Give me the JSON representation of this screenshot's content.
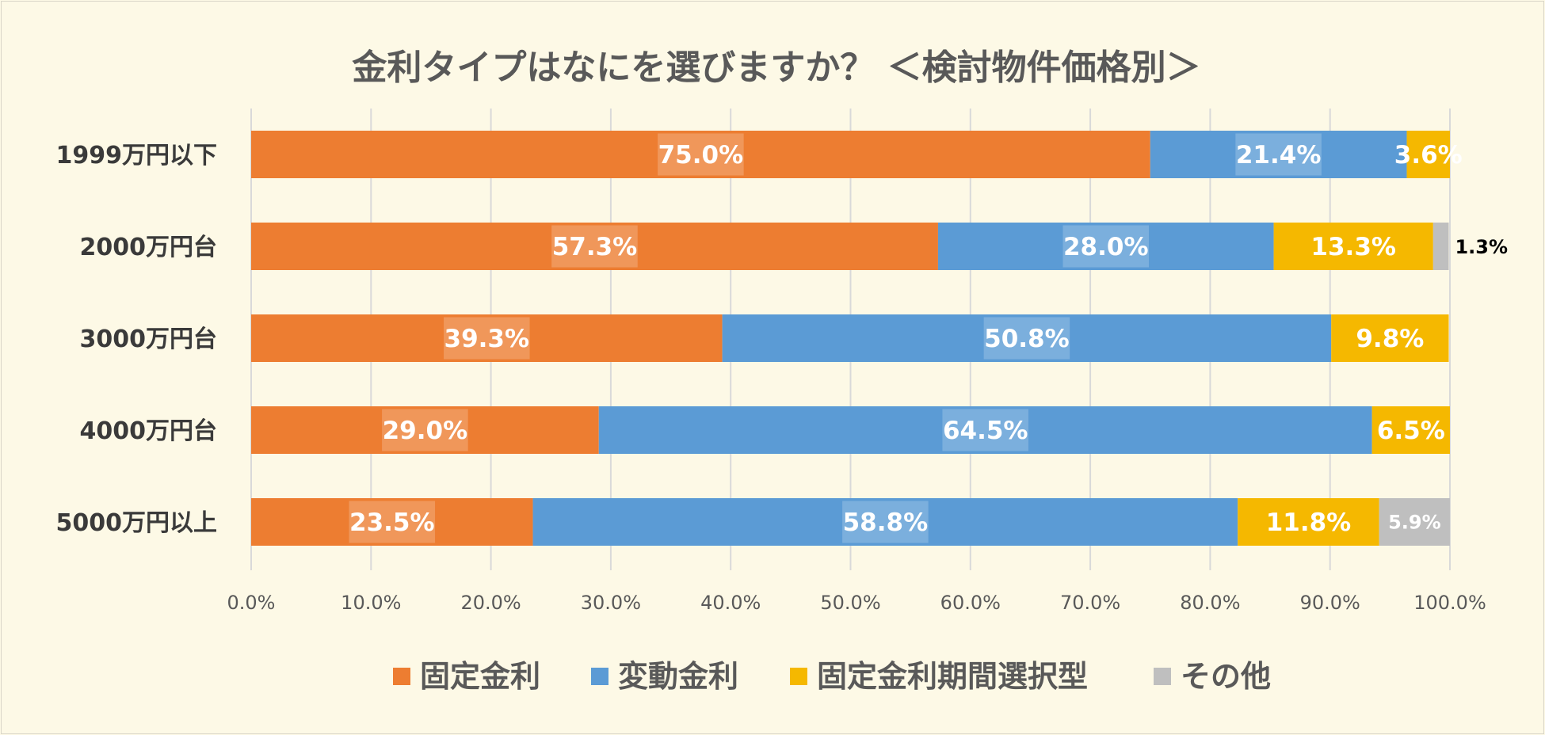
{
  "chart_data": {
    "type": "bar",
    "orientation": "horizontal",
    "stacked": true,
    "title": "金利タイプはなにを選びますか？ ＜検討物件価格別＞",
    "categories": [
      "1999万円以下",
      "2000万円台",
      "3000万円台",
      "4000万円台",
      "5000万円以上"
    ],
    "series": [
      {
        "name": "固定金利",
        "color": "#ed7d31",
        "values": [
          75.0,
          57.3,
          39.3,
          29.0,
          23.5
        ],
        "labels": [
          "75.0%",
          "57.3%",
          "39.3%",
          "29.0%",
          "23.5%"
        ]
      },
      {
        "name": "変動金利",
        "color": "#5b9bd5",
        "values": [
          21.4,
          28.0,
          50.8,
          64.5,
          58.8
        ],
        "labels": [
          "21.4%",
          "28.0%",
          "50.8%",
          "64.5%",
          "58.8%"
        ]
      },
      {
        "name": "固定金利期間選択型",
        "color": "#f5b800",
        "values": [
          3.6,
          13.3,
          9.8,
          6.5,
          11.8
        ],
        "labels": [
          "3.6%",
          "13.3%",
          "9.8%",
          "6.5%",
          "11.8%"
        ]
      },
      {
        "name": "その他",
        "color": "#bfbfbf",
        "values": [
          0,
          1.3,
          0,
          0,
          5.9
        ],
        "labels": [
          "",
          "1.3%",
          "",
          "",
          "5.9%"
        ]
      }
    ],
    "xlim": [
      0,
      100
    ],
    "xticks": [
      "0.0%",
      "10.0%",
      "20.0%",
      "30.0%",
      "40.0%",
      "50.0%",
      "60.0%",
      "70.0%",
      "80.0%",
      "90.0%",
      "100.0%"
    ],
    "grid": true,
    "legend": "bottom"
  }
}
